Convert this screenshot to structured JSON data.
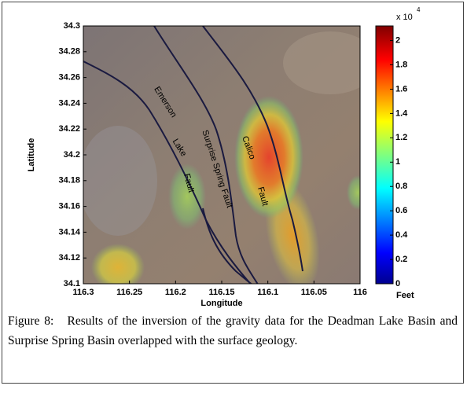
{
  "chart_data": {
    "type": "map",
    "xlabel": "Longitude",
    "ylabel": "Latitude",
    "xlim": [
      116.3,
      116
    ],
    "xticks": [
      116.3,
      116.25,
      116.2,
      116.15,
      116.1,
      116.05,
      116
    ],
    "ylim": [
      34.1,
      34.3
    ],
    "yticks": [
      34.1,
      34.12,
      34.14,
      34.16,
      34.18,
      34.2,
      34.22,
      34.24,
      34.26,
      34.28,
      34.3
    ],
    "annotations": [
      "Emerson",
      "Lake",
      "Fault",
      "Surprise Spring Fault",
      "Calico",
      "Fault"
    ],
    "colorbar": {
      "lim": [
        0,
        2.12
      ],
      "ticks": [
        0,
        0.2,
        0.4,
        0.6,
        0.8,
        1,
        1.2,
        1.4,
        1.6,
        1.8,
        2
      ],
      "multiplier": "x 10",
      "exponent": 4,
      "unit": "Feet"
    }
  },
  "caption": "Figure 8:   Results of the inversion of the gravity data for the Deadman Lake Basin and Surprise Spring Basin overlapped with the surface geology."
}
